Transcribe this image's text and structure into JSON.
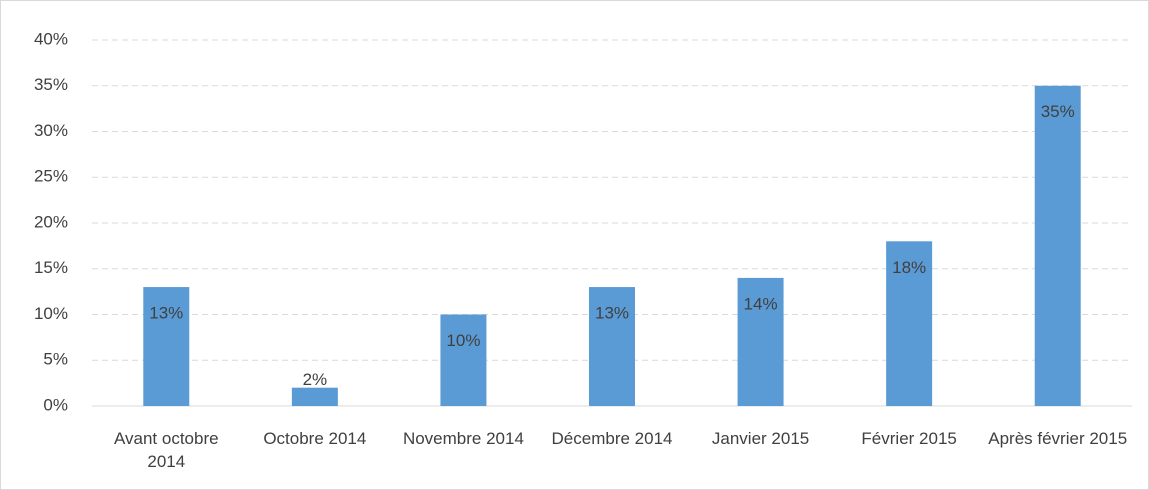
{
  "chart_data": {
    "type": "bar",
    "categories": [
      "Avant octobre 2014",
      "Octobre 2014",
      "Novembre 2014",
      "Décembre 2014",
      "Janvier 2015",
      "Février 2015",
      "Après février 2015"
    ],
    "values": [
      13,
      2,
      10,
      13,
      14,
      18,
      35
    ],
    "value_labels": [
      "13%",
      "2%",
      "10%",
      "13%",
      "14%",
      "18%",
      "35%"
    ],
    "color": "#5b9bd5",
    "ylim": [
      0,
      40
    ],
    "yticks": [
      {
        "value": 0,
        "label": "0%"
      },
      {
        "value": 5,
        "label": "5%"
      },
      {
        "value": 10,
        "label": "10%"
      },
      {
        "value": 15,
        "label": "15%"
      },
      {
        "value": 20,
        "label": "20%"
      },
      {
        "value": 25,
        "label": "25%"
      },
      {
        "value": 30,
        "label": "30%"
      },
      {
        "value": 35,
        "label": "35%"
      },
      {
        "value": 40,
        "label": "40%"
      }
    ],
    "grid": true
  }
}
